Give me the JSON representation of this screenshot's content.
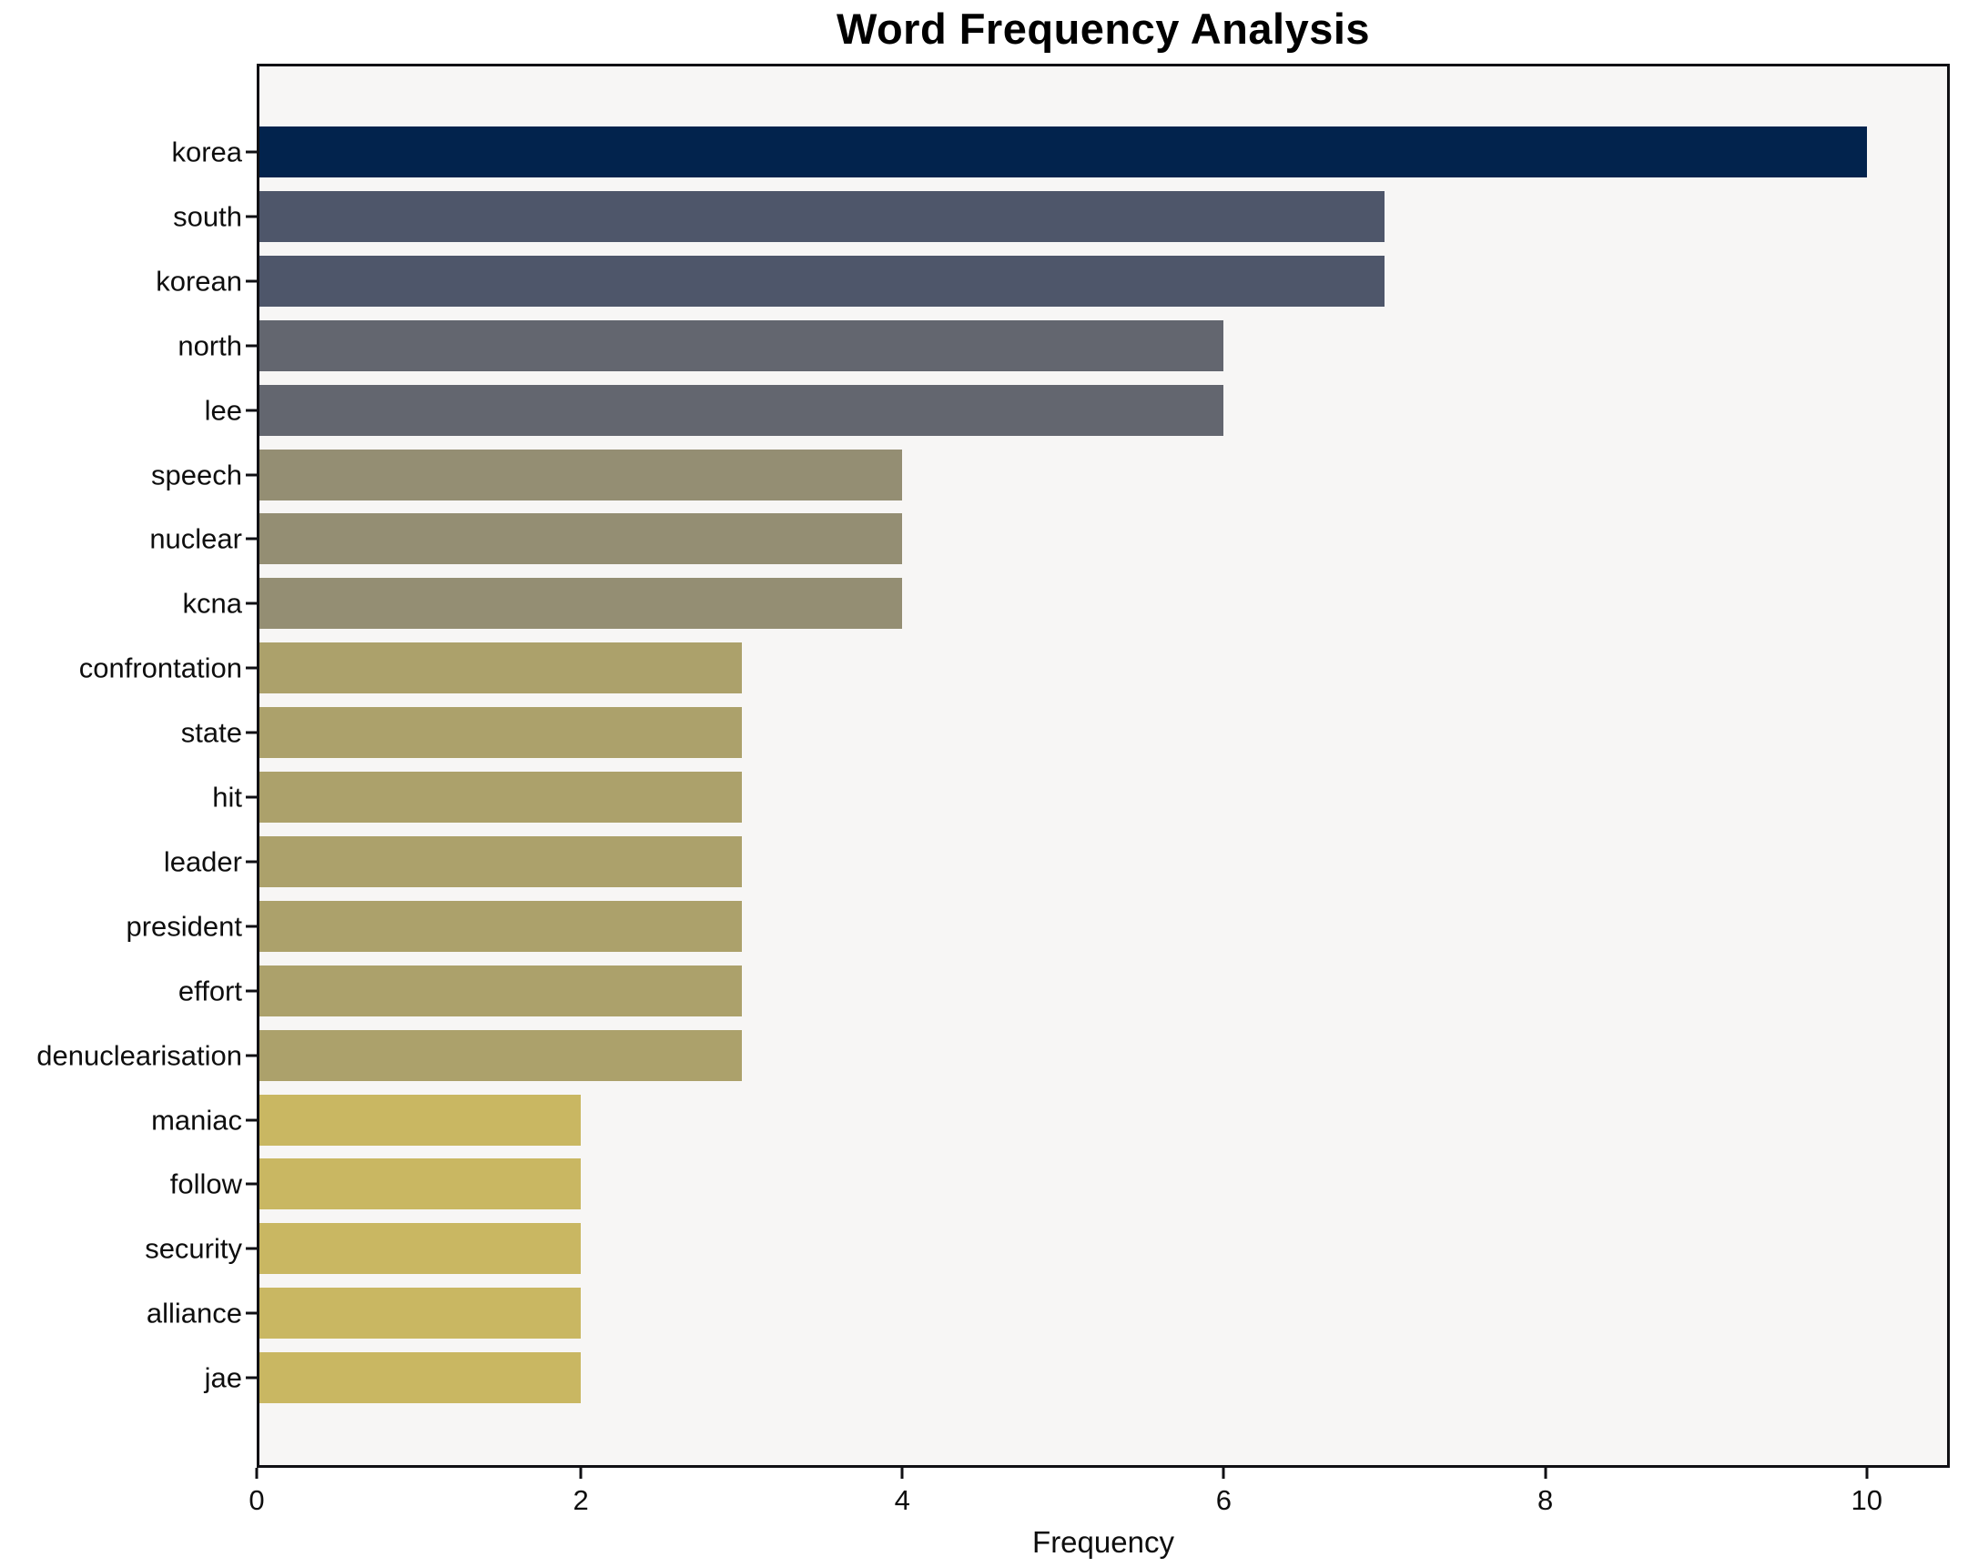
{
  "chart_data": {
    "type": "bar",
    "orientation": "horizontal",
    "title": "Word Frequency Analysis",
    "xlabel": "Frequency",
    "ylabel": "",
    "categories": [
      "korea",
      "south",
      "korean",
      "north",
      "lee",
      "speech",
      "nuclear",
      "kcna",
      "confrontation",
      "state",
      "hit",
      "leader",
      "president",
      "effort",
      "denuclearisation",
      "maniac",
      "follow",
      "security",
      "alliance",
      "jae"
    ],
    "values": [
      10,
      7,
      7,
      6,
      6,
      4,
      4,
      4,
      3,
      3,
      3,
      3,
      3,
      3,
      3,
      2,
      2,
      2,
      2,
      2
    ],
    "bar_colors": [
      "#02234d",
      "#4e566a",
      "#4e566a",
      "#63666f",
      "#63666f",
      "#948e73",
      "#948e73",
      "#948e73",
      "#aca16b",
      "#aca16b",
      "#aca16b",
      "#aca16b",
      "#aca16b",
      "#aca16b",
      "#aca16b",
      "#c9b762",
      "#c9b762",
      "#c9b762",
      "#c9b762",
      "#c9b762"
    ],
    "xticks": [
      "0",
      "2",
      "4",
      "6",
      "8",
      "10"
    ],
    "xtick_values": [
      0,
      2,
      4,
      6,
      8,
      10
    ],
    "xlim": [
      0,
      10.5
    ],
    "grid": false,
    "legend": null,
    "plot_background": "#f7f6f5",
    "frame_color": "#101014",
    "figure_background": "#ffffff"
  }
}
